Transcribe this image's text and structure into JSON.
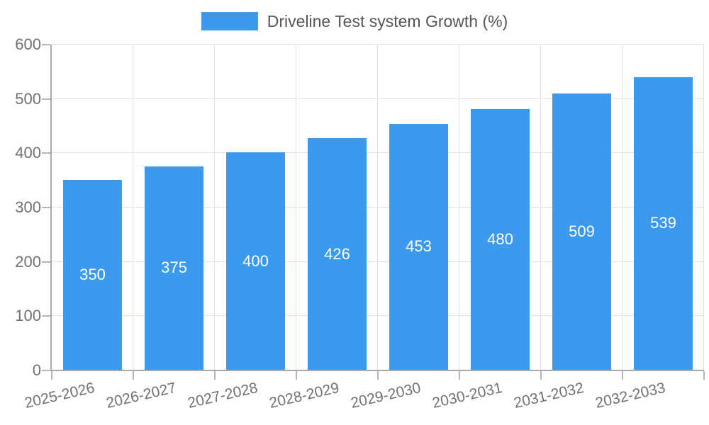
{
  "chart_data": {
    "type": "bar",
    "legend": "Driveline Test system Growth (%)",
    "legend_position": "top",
    "categories": [
      "2025-2026",
      "2026-2027",
      "2027-2028",
      "2028-2029",
      "2029-2030",
      "2030-2031",
      "2031-2032",
      "2032-2033"
    ],
    "values": [
      350,
      375,
      400,
      426,
      453,
      480,
      509,
      539
    ],
    "xlabel": "",
    "ylabel": "",
    "ylim": [
      0,
      600
    ],
    "yticks": [
      0,
      100,
      200,
      300,
      400,
      500,
      600
    ],
    "grid": true,
    "colors": {
      "bar": "#3b99ee",
      "value_label": "#ffffff",
      "gridline": "#e2e2e2",
      "axis_line": "#a8a8a8",
      "tick_mark": "#b5b5b5",
      "axis_label_text": "#717171",
      "legend_text": "#565656",
      "background": "#ffffff"
    }
  }
}
